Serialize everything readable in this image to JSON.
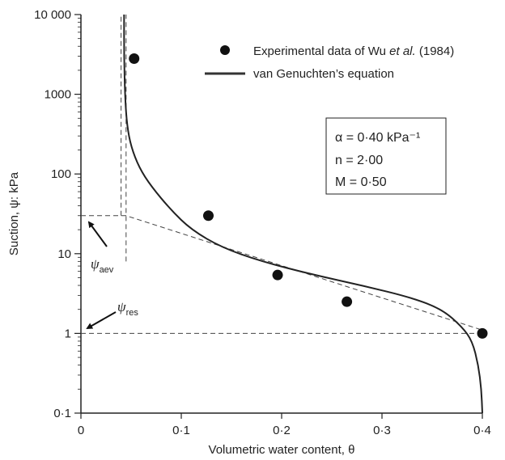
{
  "chart_data": {
    "type": "scatter",
    "xlabel": "Volumetric water content, θ",
    "ylabel": "Suction, ψ: kPa",
    "xlim": [
      0,
      0.4
    ],
    "ylim": [
      0.1,
      10000
    ],
    "yscale": "log",
    "x_ticks": [
      {
        "value": 0,
        "label": "0"
      },
      {
        "value": 0.1,
        "label": "0·1"
      },
      {
        "value": 0.2,
        "label": "0·2"
      },
      {
        "value": 0.3,
        "label": "0·3"
      },
      {
        "value": 0.4,
        "label": "0·4"
      }
    ],
    "y_ticks": [
      {
        "value": 0.1,
        "label": "0·1"
      },
      {
        "value": 1,
        "label": "1"
      },
      {
        "value": 10,
        "label": "10"
      },
      {
        "value": 100,
        "label": "100"
      },
      {
        "value": 1000,
        "label": "1000"
      },
      {
        "value": 10000,
        "label": "10 000"
      }
    ],
    "grid": false,
    "legend_position": "top-right",
    "series": [
      {
        "name": "Experimental data of Wu et al. (1984)",
        "kind": "scatter",
        "color": "#111111",
        "x": [
          0.053,
          0.127,
          0.196,
          0.265,
          0.4
        ],
        "y": [
          2800,
          30,
          5.4,
          2.5,
          1.0
        ]
      },
      {
        "name": "van Genuchten's equation",
        "kind": "line",
        "color": "#222222",
        "x": [
          0.043,
          0.043,
          0.044,
          0.046,
          0.05,
          0.058,
          0.07,
          0.09,
          0.11,
          0.14,
          0.18,
          0.23,
          0.28,
          0.33,
          0.36,
          0.38,
          0.39,
          0.396,
          0.399,
          0.4
        ],
        "y": [
          10000,
          3000,
          900,
          400,
          220,
          120,
          70,
          35,
          20,
          12,
          8,
          5.5,
          4,
          2.8,
          2.0,
          1.2,
          0.8,
          0.4,
          0.2,
          0.1
        ]
      }
    ],
    "construction_lines": {
      "upper_tangent": {
        "x": [
          0.0,
          0.045,
          0.4
        ],
        "y": [
          30,
          30,
          1.1
        ]
      },
      "residual": {
        "x": [
          0,
          0.4
        ],
        "y": [
          1,
          1
        ]
      },
      "aev_vertical": {
        "x": [
          0.045,
          0.045
        ],
        "y": [
          8,
          10000
        ]
      },
      "left_vertical": {
        "x": [
          0.04,
          0.04
        ],
        "y": [
          30,
          10000
        ]
      }
    },
    "parameters": {
      "alpha": "α = 0·40 kPa⁻¹",
      "n": "n = 2·00",
      "m": "M = 0·50"
    },
    "annotations": {
      "aev": {
        "symbol": "ψ",
        "subscript": "aev"
      },
      "res": {
        "symbol": "ψ",
        "subscript": "res"
      }
    },
    "legend": {
      "scatter_prefix": "Experimental data of Wu ",
      "scatter_italic": "et al.",
      "scatter_suffix": " (1984)",
      "line_label": "van Genuchten’s equation"
    }
  }
}
